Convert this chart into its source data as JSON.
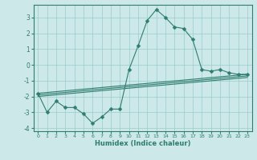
{
  "xlabel": "Humidex (Indice chaleur)",
  "ylabel": "",
  "xlim": [
    -0.5,
    23.5
  ],
  "ylim": [
    -4.2,
    3.8
  ],
  "bg_color": "#cce8e8",
  "grid_color": "#99cccc",
  "line_color": "#2e7d6e",
  "series": [
    {
      "x": [
        0,
        1,
        2,
        3,
        4,
        5,
        6,
        7,
        8,
        9,
        10,
        11,
        12,
        13,
        14,
        15,
        16,
        17,
        18,
        19,
        20,
        21,
        22,
        23
      ],
      "y": [
        -1.8,
        -3.0,
        -2.3,
        -2.7,
        -2.7,
        -3.1,
        -3.7,
        -3.3,
        -2.8,
        -2.8,
        -0.3,
        1.2,
        2.8,
        3.5,
        3.0,
        2.4,
        2.3,
        1.6,
        -0.3,
        -0.4,
        -0.3,
        -0.5,
        -0.6,
        -0.6
      ],
      "marker": "D",
      "markersize": 2.5
    },
    {
      "x": [
        0,
        23
      ],
      "y": [
        -1.8,
        -0.6
      ],
      "marker": null
    },
    {
      "x": [
        0,
        23
      ],
      "y": [
        -1.9,
        -0.7
      ],
      "marker": null
    },
    {
      "x": [
        0,
        23
      ],
      "y": [
        -2.0,
        -0.8
      ],
      "marker": null
    }
  ],
  "yticks": [
    -4,
    -3,
    -2,
    -1,
    0,
    1,
    2,
    3
  ],
  "xticks": [
    0,
    1,
    2,
    3,
    4,
    5,
    6,
    7,
    8,
    9,
    10,
    11,
    12,
    13,
    14,
    15,
    16,
    17,
    18,
    19,
    20,
    21,
    22,
    23
  ]
}
